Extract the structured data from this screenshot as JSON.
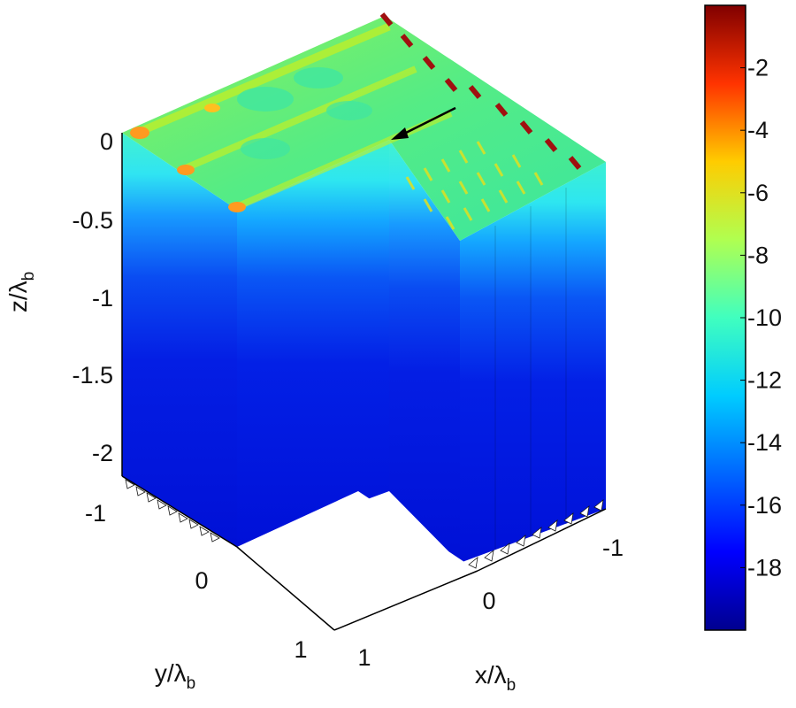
{
  "chart_data": {
    "type": "heatmap",
    "plot_style": "3d-cutaway-volume",
    "axes": {
      "z": {
        "label": "z/λ",
        "label_sub": "b",
        "ticks": [
          "0",
          "-0.5",
          "-1",
          "-1.5",
          "-2"
        ]
      },
      "y": {
        "label": "y/λ",
        "label_sub": "b",
        "ticks": [
          "-1",
          "0",
          "1"
        ]
      },
      "x": {
        "label": "x/λ",
        "label_sub": "b",
        "ticks": [
          "-1",
          "0",
          "1"
        ]
      }
    },
    "colorbar": {
      "ticks": [
        "-2",
        "-4",
        "-6",
        "-8",
        "-10",
        "-12",
        "-14",
        "-16",
        "-18"
      ],
      "range": [
        -20,
        0
      ],
      "colormap": "jet",
      "colors": [
        "#00008f",
        "#0000ff",
        "#0080ff",
        "#00ffff",
        "#80ff80",
        "#ffff00",
        "#ff8000",
        "#ff0000",
        "#800000"
      ]
    },
    "annotations": [
      "arrow"
    ]
  }
}
